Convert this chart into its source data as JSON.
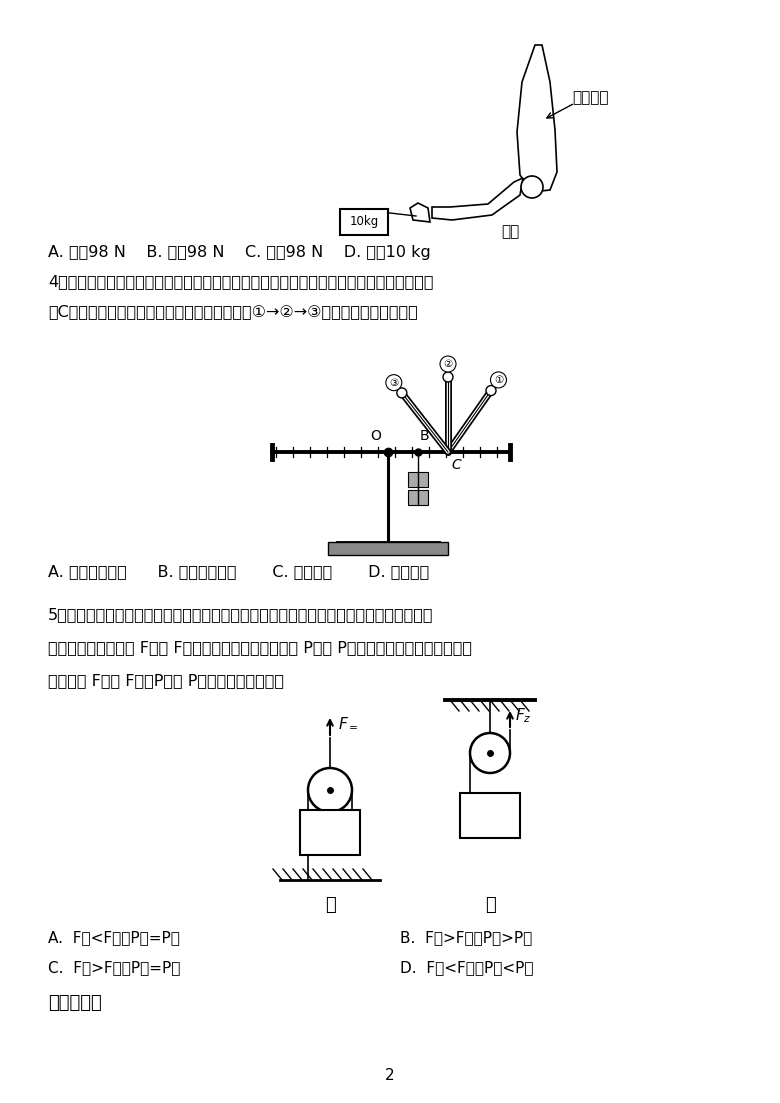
{
  "bg_color": "#ffffff",
  "text_color": "#000000",
  "page_number": "2",
  "q3_answers": "A. 大于98 N    B. 小于98 N    C. 等于98 N    D. 等于10 kg",
  "q4_intro_line1": "4．如图是小明探究「杠杆平衡条件」的实验装置，实验中杠杆始终处于水平平衡状态，若",
  "q4_intro_line2": "在C处逐渐改变弹簧测力计拉力的方向，使其从①→②→③，则拉力的变化情况是",
  "q4_answers": "A. 先变小后变大      B. 先变大后变小       C. 逐渐变大       D. 逐渐变小",
  "q5_intro_line1": "5．如图所示，用同一个动滑轮先后提升同一物体，使物体以相同的速度匀速上升相同的高",
  "q5_intro_line2": "度，所用的力分别是 F甲和 F乙，拉力做功的功率分别是 P甲和 P乙。若不计摩擦、动滑轮重和",
  "q5_intro_line3": "绳重，则 F甲与 F乙、P甲与 P乙之间的大小关系是",
  "q5_ans_A": "A.  F甲<F乙、P甲=P乙",
  "q5_ans_B": "B.  F甲>F乙、P甲>P乙",
  "q5_ans_C": "C.  F甲>F乙、P甲=P乙",
  "q5_ans_D": "D.  F甲<F乙、P甲<P乙",
  "section2_title": "二、填空题"
}
